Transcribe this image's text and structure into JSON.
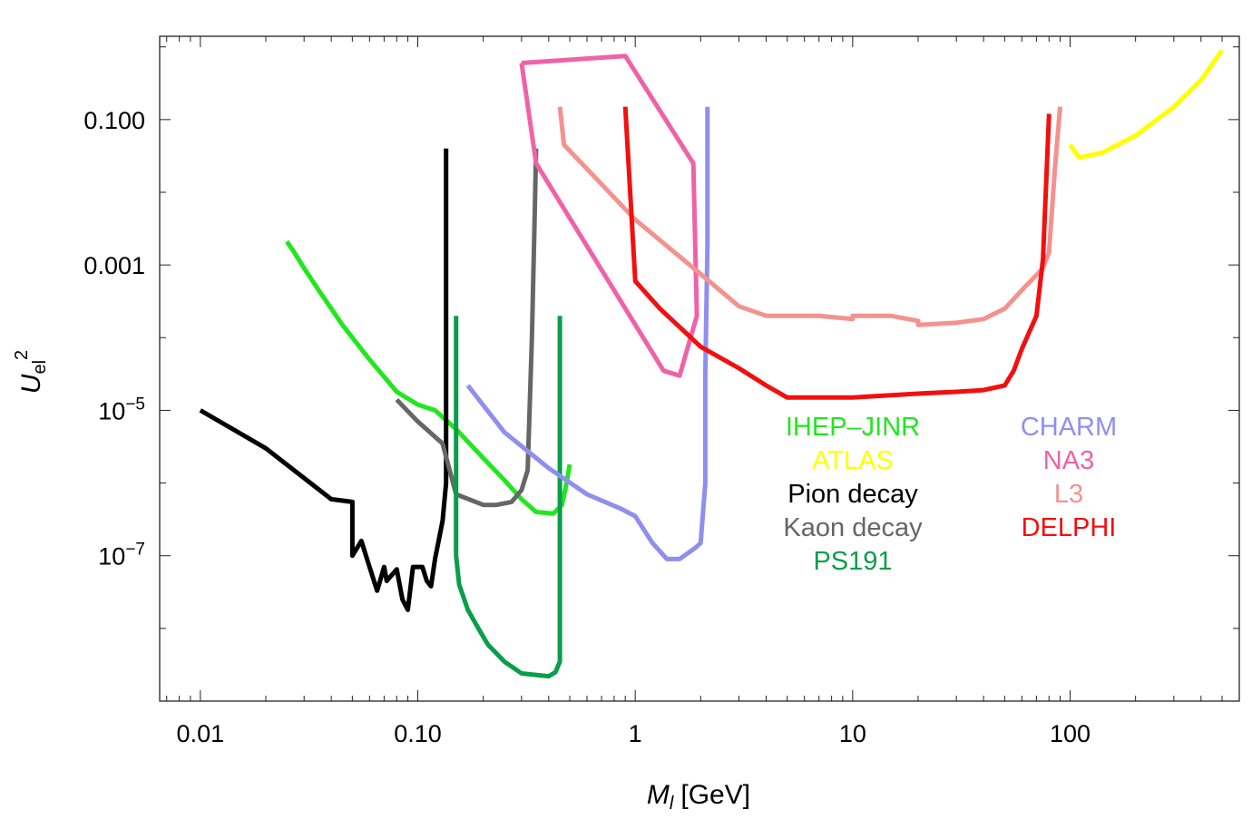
{
  "chart_data": {
    "type": "line",
    "title": "",
    "xlabel": "[GeV]",
    "xlabel_symbol": "M",
    "xlabel_sub": "l",
    "ylabel_symbol": "U",
    "ylabel_sub": "el",
    "ylabel_sup": "2",
    "xscale": "log",
    "yscale": "log",
    "xlim": [
      0.0065,
      600
    ],
    "ylim": [
      1e-09,
      1.4
    ],
    "xticks": [
      {
        "v": 0.01,
        "label": "0.01"
      },
      {
        "v": 0.1,
        "label": "0.10"
      },
      {
        "v": 1,
        "label": "1"
      },
      {
        "v": 10,
        "label": "10"
      },
      {
        "v": 100,
        "label": "100"
      }
    ],
    "yticks": [
      {
        "v": 0.1,
        "label": "0.100"
      },
      {
        "v": 0.001,
        "label": "0.001"
      },
      {
        "v": 1e-05,
        "label": "10",
        "exp": "−5"
      },
      {
        "v": 1e-07,
        "label": "10",
        "exp": "−7"
      }
    ],
    "grid": false,
    "legend": "inside-right",
    "series": [
      {
        "name": "IHEP–JINR",
        "color": "#22e61e",
        "x": [
          0.025,
          0.027,
          0.03,
          0.035,
          0.045,
          0.06,
          0.08,
          0.1,
          0.12,
          0.15,
          0.2,
          0.25,
          0.3,
          0.35,
          0.42,
          0.46,
          0.48,
          0.5
        ],
        "y": [
          0.0021,
          0.0015,
          0.0009,
          0.00045,
          0.00015,
          5e-05,
          1.8e-05,
          1.2e-05,
          1e-05,
          5.5e-06,
          2.2e-06,
          1.1e-06,
          6e-07,
          4e-07,
          3.8e-07,
          5e-07,
          9e-07,
          1.8e-06
        ]
      },
      {
        "name": "ATLAS",
        "color": "#ffff00",
        "x": [
          100,
          110,
          140,
          200,
          300,
          400,
          500
        ],
        "y": [
          0.045,
          0.03,
          0.035,
          0.06,
          0.15,
          0.35,
          0.9
        ]
      },
      {
        "name": "Pion decay",
        "color": "#000000",
        "x": [
          0.01,
          0.02,
          0.04,
          0.05,
          0.05,
          0.055,
          0.06,
          0.065,
          0.07,
          0.072,
          0.08,
          0.085,
          0.09,
          0.095,
          0.105,
          0.11,
          0.115,
          0.12,
          0.13,
          0.135,
          0.135
        ],
        "y": [
          1e-05,
          3e-06,
          6e-07,
          5.5e-07,
          1e-07,
          1.6e-07,
          7e-08,
          3.3e-08,
          7e-08,
          4.5e-08,
          6.5e-08,
          2.5e-08,
          1.8e-08,
          7e-08,
          7e-08,
          4.5e-08,
          3.8e-08,
          9e-08,
          3e-07,
          1e-06,
          0.04
        ]
      },
      {
        "name": "Kaon decay",
        "color": "#666666",
        "x": [
          0.08,
          0.1,
          0.13,
          0.15,
          0.2,
          0.23,
          0.27,
          0.3,
          0.32,
          0.335,
          0.345,
          0.35
        ],
        "y": [
          1.4e-05,
          7e-06,
          3.5e-06,
          7e-07,
          5e-07,
          5e-07,
          5.5e-07,
          8e-07,
          1.5e-06,
          0.0001,
          0.005,
          0.04
        ]
      },
      {
        "name": "PS191",
        "color": "#0a9e4a",
        "x": [
          0.15,
          0.15,
          0.15,
          0.155,
          0.17,
          0.19,
          0.21,
          0.25,
          0.3,
          0.4,
          0.43,
          0.45,
          0.45,
          0.45
        ],
        "y": [
          0.0002,
          1e-05,
          1e-07,
          4e-08,
          1.8e-08,
          1e-08,
          6e-09,
          3.5e-09,
          2.4e-09,
          2.2e-09,
          2.5e-09,
          3.5e-09,
          2e-07,
          0.0002
        ]
      },
      {
        "name": "CHARM",
        "color": "#8f8fef",
        "x": [
          0.17,
          0.25,
          0.4,
          0.6,
          0.85,
          1.0,
          1.2,
          1.4,
          1.6,
          1.9,
          2.0,
          2.1,
          2.1,
          2.15,
          2.15
        ],
        "y": [
          2.2e-05,
          5e-06,
          1.6e-06,
          7e-07,
          4.5e-07,
          3.5e-07,
          1.5e-07,
          9e-08,
          9e-08,
          1.3e-07,
          1.5e-07,
          1e-06,
          3e-05,
          0.002,
          0.15
        ]
      },
      {
        "name": "NA3",
        "color": "#f062a8",
        "x": [
          0.3,
          0.9,
          1.85,
          1.92,
          1.6,
          1.35,
          0.35,
          0.3
        ],
        "y": [
          0.6,
          0.75,
          0.025,
          0.0002,
          3e-05,
          3.5e-05,
          0.025,
          0.6
        ]
      },
      {
        "name": "L3",
        "color": "#f4928e",
        "x": [
          0.45,
          0.47,
          1,
          2,
          3,
          4,
          7,
          10,
          10,
          15,
          20,
          20,
          30,
          40,
          50,
          60,
          75,
          80,
          85,
          90
        ],
        "y": [
          0.15,
          0.045,
          0.0042,
          0.00075,
          0.00027,
          0.0002,
          0.0002,
          0.00018,
          0.0002,
          0.0002,
          0.00017,
          0.00015,
          0.00016,
          0.00018,
          0.00025,
          0.00045,
          0.0009,
          0.0015,
          0.02,
          0.15
        ]
      },
      {
        "name": "DELPHI",
        "color": "#f20f0f",
        "x": [
          0.9,
          1,
          1.3,
          2,
          3,
          4,
          5,
          10,
          20,
          30,
          40,
          50,
          55,
          60,
          70,
          75,
          80
        ],
        "y": [
          0.15,
          0.0006,
          0.00025,
          7.5e-05,
          3.8e-05,
          2.2e-05,
          1.5e-05,
          1.5e-05,
          1.7e-05,
          1.8e-05,
          1.9e-05,
          2.2e-05,
          3.5e-05,
          7e-05,
          0.0002,
          0.0012,
          0.12
        ]
      }
    ],
    "legend_left": [
      "IHEP–JINR",
      "ATLAS",
      "Pion decay",
      "Kaon decay",
      "PS191"
    ],
    "legend_right": [
      "CHARM",
      "NA3",
      "L3",
      "DELPHI"
    ]
  }
}
